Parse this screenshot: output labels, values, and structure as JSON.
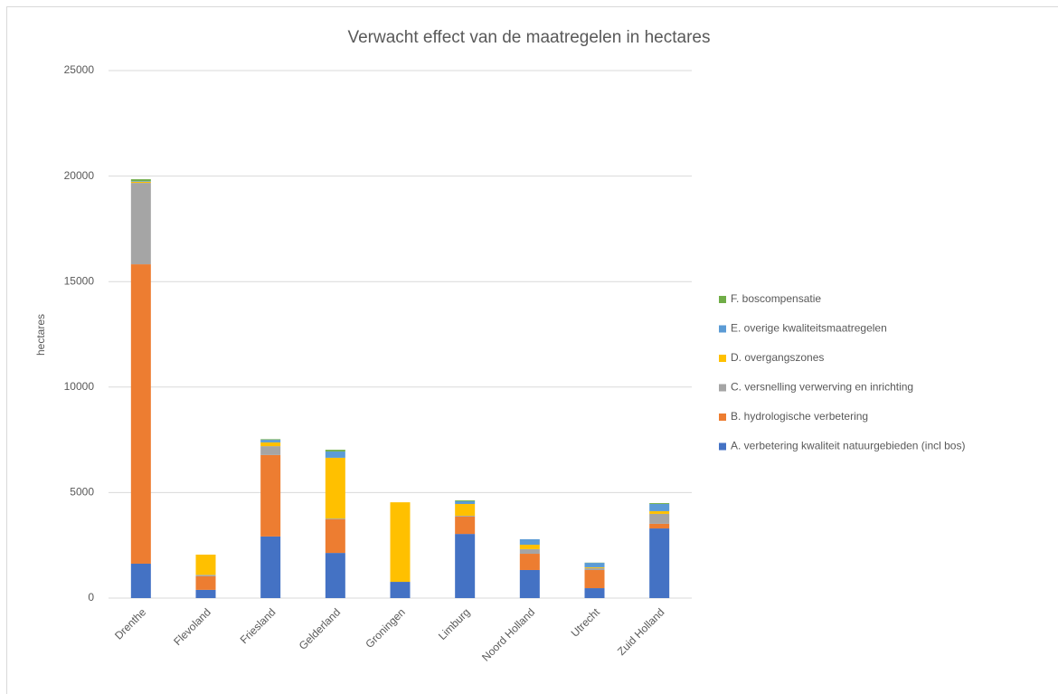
{
  "chart_data": {
    "type": "stacked_bar",
    "title": "Verwacht effect van de maatregelen in hectares",
    "y_label": "hectares",
    "categories": [
      "Drenthe",
      "Flevoland",
      "Friesland",
      "Gelderland",
      "Groningen",
      "Limburg",
      "Noord Holland",
      "Utrecht",
      "Zuid Holland"
    ],
    "series": [
      {
        "name": "A. verbetering kwaliteit natuurgebieden (incl bos)",
        "color": "#4472c4",
        "values": [
          1630,
          390,
          2920,
          2140,
          770,
          3040,
          1330,
          470,
          3300
        ]
      },
      {
        "name": "B. hydrologische verbetering",
        "color": "#ed7d31",
        "values": [
          14190,
          640,
          3860,
          1590,
          0,
          820,
          770,
          860,
          220
        ]
      },
      {
        "name": "C. versnelling verwerving en inrichting",
        "color": "#a5a5a5",
        "values": [
          3860,
          70,
          420,
          40,
          0,
          40,
          220,
          90,
          470
        ]
      },
      {
        "name": "D. overgangszones",
        "color": "#ffc000",
        "values": [
          50,
          960,
          180,
          2880,
          3770,
          560,
          210,
          40,
          130
        ]
      },
      {
        "name": "E. overige kwaliteitsmaatregelen",
        "color": "#5b9bd5",
        "values": [
          30,
          0,
          120,
          300,
          0,
          130,
          260,
          210,
          340
        ]
      },
      {
        "name": "F. boscompensatie",
        "color": "#70ad47",
        "values": [
          90,
          0,
          30,
          80,
          0,
          40,
          0,
          10,
          40
        ]
      }
    ],
    "ylim": [
      0,
      25000
    ],
    "yticks": [
      0,
      5000,
      10000,
      15000,
      20000,
      25000
    ],
    "grid": true,
    "legend": "right"
  }
}
